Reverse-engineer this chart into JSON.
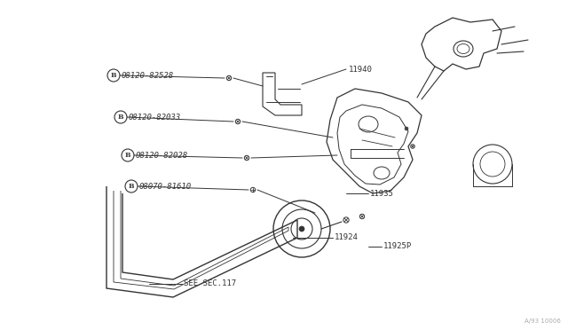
{
  "bg_color": "#ffffff",
  "fig_width": 6.4,
  "fig_height": 3.72,
  "dpi": 100,
  "watermark": "A/93 10006",
  "line_color": "#333333",
  "label_color": "#333333",
  "labels": {
    "B1_part": "08120-82528",
    "B2_part": "08120-82033",
    "B3_part": "08120-82028",
    "B4_part": "08070-81610",
    "p11940": "11940",
    "p11935": "11935",
    "p11924": "11924",
    "p11925P": "11925P",
    "see": "SEE SEC.117"
  }
}
